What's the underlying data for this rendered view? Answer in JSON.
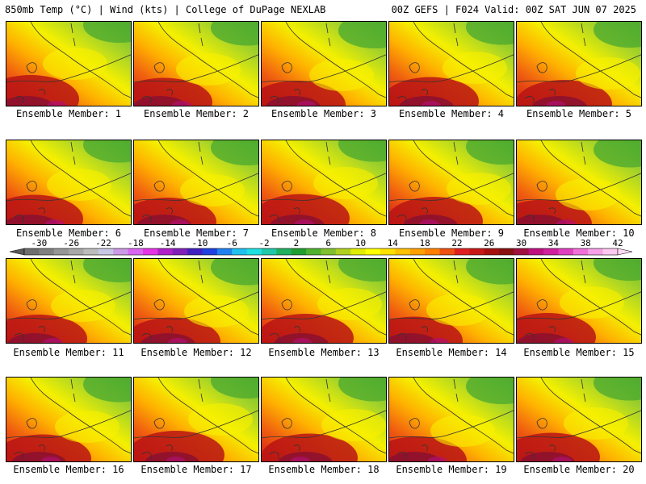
{
  "header": {
    "left": "850mb Temp (°C) | Wind (kts) | College of DuPage NEXLAB",
    "right": "00Z GEFS | F024 Valid: 00Z SAT JUN 07 2025"
  },
  "members": [
    {
      "label": "Ensemble Member: 1"
    },
    {
      "label": "Ensemble Member: 2"
    },
    {
      "label": "Ensemble Member: 3"
    },
    {
      "label": "Ensemble Member: 4"
    },
    {
      "label": "Ensemble Member: 5"
    },
    {
      "label": "Ensemble Member: 6"
    },
    {
      "label": "Ensemble Member: 7"
    },
    {
      "label": "Ensemble Member: 8"
    },
    {
      "label": "Ensemble Member: 9"
    },
    {
      "label": "Ensemble Member: 10"
    },
    {
      "label": "Ensemble Member: 11"
    },
    {
      "label": "Ensemble Member: 12"
    },
    {
      "label": "Ensemble Member: 13"
    },
    {
      "label": "Ensemble Member: 14"
    },
    {
      "label": "Ensemble Member: 15"
    },
    {
      "label": "Ensemble Member: 16"
    },
    {
      "label": "Ensemble Member: 17"
    },
    {
      "label": "Ensemble Member: 18"
    },
    {
      "label": "Ensemble Member: 19"
    },
    {
      "label": "Ensemble Member: 20"
    }
  ],
  "colorbar": {
    "ticks": [
      "-30",
      "-26",
      "-22",
      "-18",
      "-14",
      "-10",
      "-6",
      "-2",
      "2",
      "6",
      "10",
      "14",
      "18",
      "22",
      "26",
      "30",
      "34",
      "38",
      "42"
    ],
    "colors": [
      "#6e6e6e",
      "#808080",
      "#969696",
      "#a8a8a8",
      "#bcbcbc",
      "#c8c8e6",
      "#cc99e6",
      "#d966f0",
      "#e633e6",
      "#b020c8",
      "#8020b8",
      "#4020c0",
      "#2040e0",
      "#2080f0",
      "#20c0f0",
      "#20e0e0",
      "#20c8a8",
      "#20b060",
      "#209e30",
      "#50b030",
      "#80c030",
      "#b0d020",
      "#e0ec00",
      "#ffff00",
      "#ffe000",
      "#ffc000",
      "#ffa000",
      "#ff8000",
      "#f05010",
      "#e02020",
      "#c81818",
      "#a81010",
      "#881010",
      "#a01040",
      "#c01080",
      "#d020a0",
      "#e040c0",
      "#f070d8",
      "#f8a0e8",
      "#ffc8f0"
    ]
  }
}
